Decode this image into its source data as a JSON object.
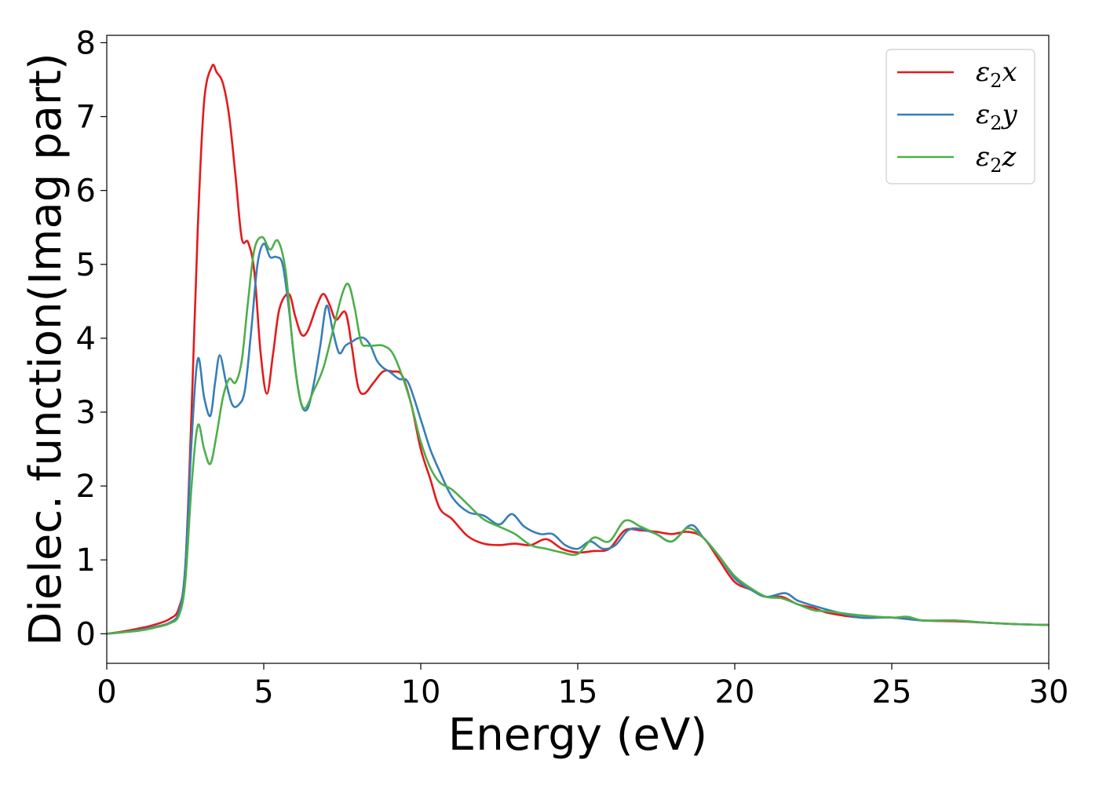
{
  "chart_data": {
    "type": "line",
    "xlabel": "Energy (eV)",
    "ylabel": "Dielec. function(Imag part)",
    "xlim": [
      0,
      30
    ],
    "ylim": [
      -0.4,
      8.1
    ],
    "xticks": [
      0,
      5,
      10,
      15,
      20,
      25,
      30
    ],
    "yticks": [
      0,
      1,
      2,
      3,
      4,
      5,
      6,
      7,
      8
    ],
    "grid": false,
    "legend_position": "top-right",
    "series": [
      {
        "name": "ε2x",
        "legend_symbol": "ε",
        "legend_subscript": "2",
        "legend_suffix": "x",
        "color": "#e41a1c",
        "x": [
          0,
          0.5,
          1.0,
          1.5,
          2.0,
          2.3,
          2.5,
          2.7,
          2.9,
          3.1,
          3.35,
          3.5,
          3.7,
          3.9,
          4.1,
          4.3,
          4.5,
          4.7,
          4.9,
          5.1,
          5.3,
          5.5,
          5.8,
          6.0,
          6.2,
          6.4,
          6.7,
          6.9,
          7.1,
          7.3,
          7.6,
          7.8,
          8.0,
          8.2,
          8.5,
          8.8,
          9.1,
          9.4,
          9.7,
          10.0,
          10.3,
          10.6,
          11.0,
          11.5,
          12.0,
          12.5,
          13.0,
          13.5,
          14.0,
          14.5,
          15.0,
          15.5,
          16.0,
          16.5,
          17.0,
          17.5,
          18.0,
          18.5,
          19.0,
          19.5,
          20.0,
          20.5,
          21.0,
          21.5,
          22.0,
          22.5,
          23.0,
          24.0,
          25.0,
          26.0,
          27.0,
          28.0,
          29.0,
          30.0
        ],
        "values": [
          0.0,
          0.03,
          0.07,
          0.12,
          0.2,
          0.35,
          0.9,
          3.0,
          5.5,
          7.2,
          7.68,
          7.6,
          7.45,
          7.0,
          6.2,
          5.35,
          5.3,
          4.9,
          3.8,
          3.25,
          3.8,
          4.4,
          4.6,
          4.3,
          4.05,
          4.1,
          4.45,
          4.6,
          4.45,
          4.25,
          4.35,
          3.9,
          3.35,
          3.25,
          3.4,
          3.55,
          3.55,
          3.5,
          3.1,
          2.5,
          2.1,
          1.7,
          1.55,
          1.32,
          1.22,
          1.2,
          1.22,
          1.2,
          1.28,
          1.15,
          1.1,
          1.12,
          1.15,
          1.4,
          1.4,
          1.38,
          1.35,
          1.38,
          1.3,
          1.0,
          0.7,
          0.6,
          0.5,
          0.5,
          0.4,
          0.35,
          0.28,
          0.22,
          0.22,
          0.18,
          0.17,
          0.15,
          0.13,
          0.12
        ]
      },
      {
        "name": "ε2y",
        "legend_symbol": "ε",
        "legend_subscript": "2",
        "legend_suffix": "y",
        "color": "#377eb8",
        "x": [
          0,
          0.5,
          1.0,
          1.5,
          2.0,
          2.3,
          2.5,
          2.7,
          2.9,
          3.1,
          3.3,
          3.45,
          3.6,
          3.8,
          4.0,
          4.2,
          4.4,
          4.6,
          4.8,
          5.0,
          5.2,
          5.4,
          5.6,
          5.8,
          6.0,
          6.2,
          6.4,
          6.6,
          6.8,
          7.0,
          7.2,
          7.4,
          7.6,
          7.8,
          8.0,
          8.2,
          8.4,
          8.6,
          8.8,
          9.0,
          9.3,
          9.6,
          10.0,
          10.3,
          10.6,
          11.0,
          11.5,
          12.0,
          12.5,
          12.9,
          13.3,
          13.8,
          14.2,
          14.6,
          15.0,
          15.4,
          15.8,
          16.2,
          16.6,
          17.0,
          17.5,
          18.0,
          18.6,
          19.0,
          19.5,
          20.0,
          20.5,
          21.0,
          21.6,
          22.0,
          22.5,
          23.0,
          24.0,
          25.0,
          26.0,
          27.0,
          28.0,
          29.0,
          30.0
        ],
        "values": [
          0.0,
          0.02,
          0.05,
          0.09,
          0.15,
          0.3,
          0.9,
          2.6,
          3.72,
          3.2,
          2.95,
          3.4,
          3.77,
          3.4,
          3.1,
          3.1,
          3.3,
          4.1,
          5.0,
          5.28,
          5.1,
          5.1,
          5.0,
          4.4,
          3.6,
          3.1,
          3.05,
          3.4,
          3.9,
          4.44,
          4.1,
          3.8,
          3.9,
          3.95,
          4.0,
          4.0,
          3.9,
          3.7,
          3.6,
          3.55,
          3.45,
          3.4,
          2.9,
          2.5,
          2.2,
          1.85,
          1.65,
          1.6,
          1.48,
          1.62,
          1.45,
          1.35,
          1.35,
          1.2,
          1.15,
          1.25,
          1.15,
          1.2,
          1.4,
          1.42,
          1.35,
          1.25,
          1.47,
          1.3,
          1.05,
          0.75,
          0.6,
          0.5,
          0.55,
          0.45,
          0.38,
          0.32,
          0.22,
          0.22,
          0.18,
          0.18,
          0.15,
          0.13,
          0.12
        ]
      },
      {
        "name": "ε2z",
        "legend_symbol": "ε",
        "legend_subscript": "2",
        "legend_suffix": "z",
        "color": "#4daf4a",
        "x": [
          0,
          0.5,
          1.0,
          1.5,
          2.0,
          2.3,
          2.5,
          2.7,
          2.9,
          3.1,
          3.3,
          3.5,
          3.7,
          3.9,
          4.1,
          4.3,
          4.5,
          4.7,
          4.95,
          5.2,
          5.45,
          5.7,
          5.9,
          6.1,
          6.3,
          6.6,
          6.9,
          7.2,
          7.5,
          7.7,
          7.9,
          8.1,
          8.3,
          8.5,
          8.8,
          9.1,
          9.4,
          9.7,
          10.0,
          10.3,
          10.6,
          11.0,
          11.5,
          12.0,
          12.5,
          13.0,
          13.5,
          14.0,
          14.5,
          15.0,
          15.5,
          16.0,
          16.5,
          17.0,
          17.5,
          18.0,
          18.5,
          19.0,
          19.5,
          20.0,
          20.5,
          21.0,
          21.5,
          22.0,
          22.5,
          23.0,
          24.0,
          25.0,
          25.5,
          26.0,
          27.0,
          28.0,
          29.0,
          30.0
        ],
        "values": [
          0.0,
          0.02,
          0.04,
          0.08,
          0.14,
          0.25,
          0.7,
          2.0,
          2.82,
          2.5,
          2.3,
          2.7,
          3.2,
          3.45,
          3.4,
          3.7,
          4.5,
          5.2,
          5.37,
          5.2,
          5.32,
          4.9,
          4.0,
          3.3,
          3.05,
          3.3,
          3.6,
          4.1,
          4.6,
          4.73,
          4.4,
          3.95,
          3.9,
          3.9,
          3.9,
          3.8,
          3.5,
          3.1,
          2.6,
          2.25,
          2.05,
          1.95,
          1.75,
          1.55,
          1.45,
          1.35,
          1.2,
          1.15,
          1.1,
          1.08,
          1.3,
          1.25,
          1.53,
          1.45,
          1.35,
          1.25,
          1.43,
          1.3,
          1.05,
          0.78,
          0.62,
          0.5,
          0.48,
          0.4,
          0.32,
          0.3,
          0.25,
          0.22,
          0.23,
          0.18,
          0.18,
          0.15,
          0.13,
          0.12
        ]
      }
    ]
  }
}
